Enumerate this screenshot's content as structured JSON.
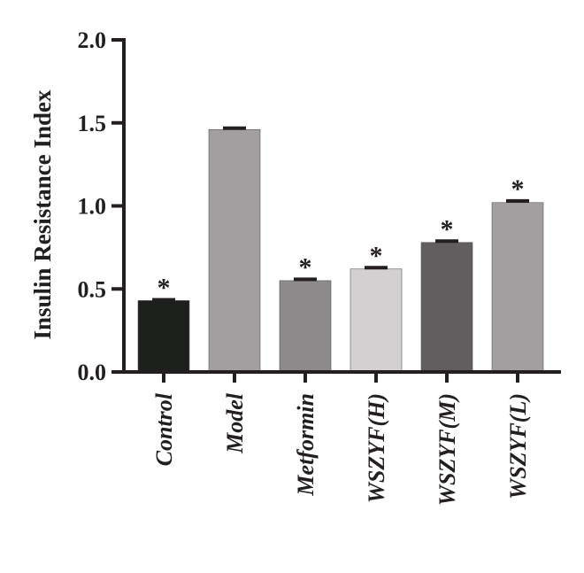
{
  "chart_data": {
    "type": "bar",
    "ylabel": "Insulin Resistance Index",
    "ylim": [
      0,
      2.0
    ],
    "yticks": [
      "0.0",
      "0.5",
      "1.0",
      "1.5",
      "2.0"
    ],
    "categories": [
      "Control",
      "Model",
      "Metformin",
      "WSZYF(H)",
      "WSZYF(M)",
      "WSZYF(L)"
    ],
    "values": [
      0.43,
      1.46,
      0.55,
      0.62,
      0.78,
      1.02
    ],
    "errors": [
      0.005,
      0.008,
      0.008,
      0.008,
      0.008,
      0.01
    ],
    "significance": [
      "*",
      "",
      "*",
      "*",
      "*",
      "*"
    ],
    "colors": [
      "#1d1f1c",
      "#a39ea0",
      "#8c8a8b",
      "#d3d0d1",
      "#625d5e",
      "#a39ea0"
    ],
    "grid": false,
    "legend": "none"
  }
}
